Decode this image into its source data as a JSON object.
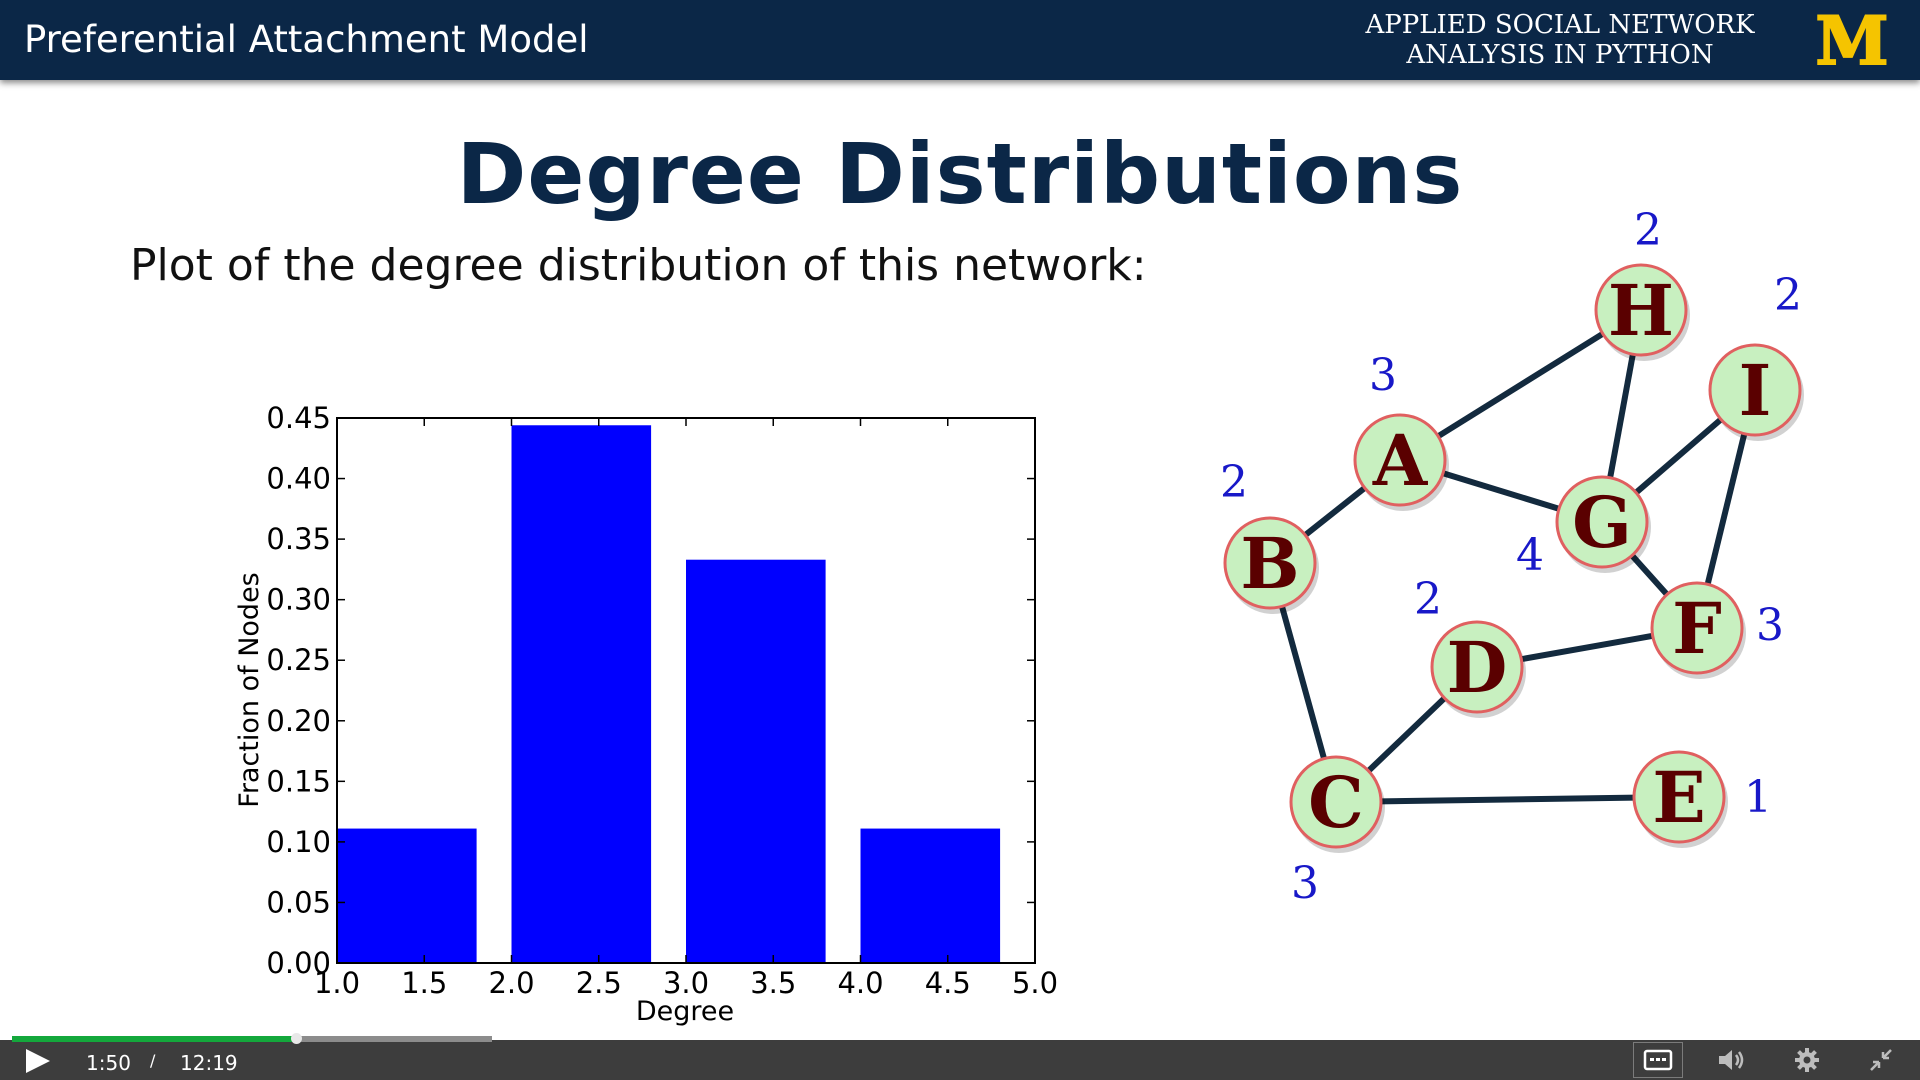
{
  "header": {
    "title": "Preferential Attachment Model",
    "course_line1": "APPLIED SOCIAL NETWORK",
    "course_line2": "ANALYSIS IN PYTHON",
    "logo_letter": "M",
    "background": "#0b2747",
    "logo_color": "#f5c400"
  },
  "slide": {
    "title": "Degree Distributions",
    "subtitle": "Plot of the degree distribution of this network:"
  },
  "chart_data": {
    "type": "bar",
    "title": "",
    "xlabel": "Degree",
    "ylabel": "Fraction of Nodes",
    "x": [
      1,
      2,
      3,
      4
    ],
    "values": [
      0.111,
      0.444,
      0.333,
      0.111
    ],
    "bar_width": 0.8,
    "xlim": [
      1.0,
      5.0
    ],
    "ylim": [
      0,
      0.45
    ],
    "xticks": [
      "1.0",
      "1.5",
      "2.0",
      "2.5",
      "3.0",
      "3.5",
      "4.0",
      "4.5",
      "5.0"
    ],
    "yticks": [
      "0.00",
      "0.05",
      "0.10",
      "0.15",
      "0.20",
      "0.25",
      "0.30",
      "0.35",
      "0.40",
      "0.45"
    ],
    "bar_color": "#0000ff",
    "grid": false
  },
  "network": {
    "nodes": [
      {
        "id": "H",
        "degree": "2"
      },
      {
        "id": "I",
        "degree": "2"
      },
      {
        "id": "A",
        "degree": "3"
      },
      {
        "id": "G",
        "degree": "4"
      },
      {
        "id": "B",
        "degree": "2"
      },
      {
        "id": "F",
        "degree": "3"
      },
      {
        "id": "D",
        "degree": "2"
      },
      {
        "id": "C",
        "degree": "3"
      },
      {
        "id": "E",
        "degree": "1"
      }
    ],
    "edges": [
      [
        "A",
        "H"
      ],
      [
        "H",
        "G"
      ],
      [
        "A",
        "G"
      ],
      [
        "A",
        "B"
      ],
      [
        "I",
        "G"
      ],
      [
        "I",
        "F"
      ],
      [
        "G",
        "F"
      ],
      [
        "B",
        "C"
      ],
      [
        "D",
        "F"
      ],
      [
        "C",
        "D"
      ],
      [
        "C",
        "E"
      ]
    ],
    "node_fill": "#c8f0c0",
    "node_stroke": "#e06060",
    "label_color": "#5a0000",
    "degree_color": "#1818c8"
  },
  "player": {
    "current_time": "1:50",
    "separator": "/",
    "total_time": "12:19",
    "progress": 0.149,
    "buffered": 0.2514,
    "play_icon": "play-icon",
    "captions_icon": "captions-icon",
    "volume_icon": "volume-icon",
    "settings_icon": "gear-icon",
    "exit_fullscreen_icon": "exit-fullscreen-icon"
  }
}
